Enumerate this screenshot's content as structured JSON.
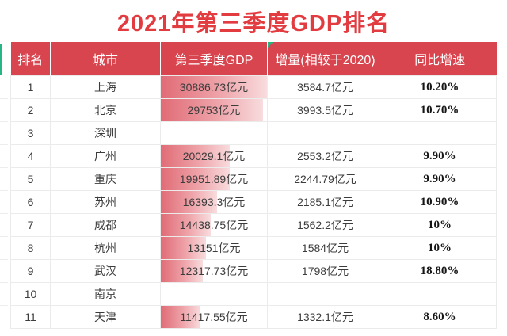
{
  "title": "2021年第三季度GDP排名",
  "colors": {
    "title_red": "#e23b40",
    "header_bg": "#d8454e",
    "header_text": "#ffffff",
    "bar_gradient_start": "#e06b75",
    "bar_gradient_end": "#f8dcde",
    "green_accent": "#27b586",
    "body_text": "#3c3c3c",
    "grid_line": "#ebebeb"
  },
  "chart_data": {
    "type": "table",
    "title": "2021年第三季度GDP排名",
    "columns": [
      "排名",
      "城市",
      "第三季度GDP",
      "增量(相较于2020)",
      "同比增速"
    ],
    "rows": [
      {
        "rank": "1",
        "city": "上海",
        "gdp": "30886.73亿元",
        "gdp_value": 30886.73,
        "increment": "3584.7亿元",
        "growth": "10.20%"
      },
      {
        "rank": "2",
        "city": "北京",
        "gdp": "29753亿元",
        "gdp_value": 29753,
        "increment": "3993.5亿元",
        "growth": "10.70%"
      },
      {
        "rank": "3",
        "city": "深圳",
        "gdp": "",
        "gdp_value": 0,
        "increment": "",
        "growth": ""
      },
      {
        "rank": "4",
        "city": "广州",
        "gdp": "20029.1亿元",
        "gdp_value": 20029.1,
        "increment": "2553.2亿元",
        "growth": "9.90%"
      },
      {
        "rank": "5",
        "city": "重庆",
        "gdp": "19951.89亿元",
        "gdp_value": 19951.89,
        "increment": "2244.79亿元",
        "growth": "9.90%"
      },
      {
        "rank": "6",
        "city": "苏州",
        "gdp": "16393.3亿元",
        "gdp_value": 16393.3,
        "increment": "2185.1亿元",
        "growth": "10.90%"
      },
      {
        "rank": "7",
        "city": "成都",
        "gdp": "14438.75亿元",
        "gdp_value": 14438.75,
        "increment": "1562.2亿元",
        "growth": "10%"
      },
      {
        "rank": "8",
        "city": "杭州",
        "gdp": "13151亿元",
        "gdp_value": 13151,
        "increment": "1584亿元",
        "growth": "10%"
      },
      {
        "rank": "9",
        "city": "武汉",
        "gdp": "12317.73亿元",
        "gdp_value": 12317.73,
        "increment": "1798亿元",
        "growth": "18.80%"
      },
      {
        "rank": "10",
        "city": "南京",
        "gdp": "",
        "gdp_value": 0,
        "increment": "",
        "growth": ""
      },
      {
        "rank": "11",
        "city": "天津",
        "gdp": "11417.55亿元",
        "gdp_value": 11417.55,
        "increment": "1332.1亿元",
        "growth": "8.60%"
      }
    ],
    "bar_max": 30886.73,
    "layout_hints": {
      "gdp_column_data_bars": "pink gradient bars, width proportional to gdp_value / bar_max",
      "growth_column_font": "bold serif",
      "green_corner_flag_on_increment_header": true,
      "green_strip_left_of_header": true
    }
  }
}
